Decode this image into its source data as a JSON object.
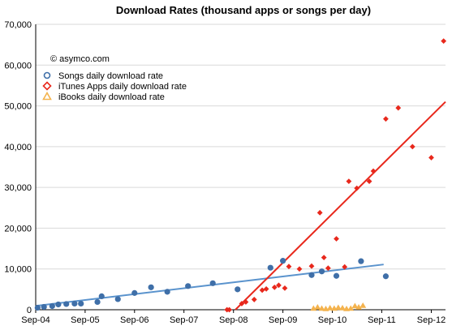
{
  "chart_data": {
    "type": "scatter",
    "title": "Download Rates (thousand apps or songs per day)",
    "annotation": "© asymco.com",
    "xlabel": "",
    "ylabel": "",
    "xlim": [
      "2004-09-01",
      "2012-12-15"
    ],
    "ylim": [
      0,
      70000
    ],
    "y_ticks": [
      0,
      10000,
      20000,
      30000,
      40000,
      50000,
      60000,
      70000
    ],
    "y_tick_labels": [
      "0",
      "10,000",
      "20,000",
      "30,000",
      "40,000",
      "50,000",
      "60,000",
      "70,000"
    ],
    "x_ticks": [
      "2004-09-01",
      "2005-09-01",
      "2006-09-01",
      "2007-09-01",
      "2008-09-01",
      "2009-09-01",
      "2010-09-01",
      "2011-09-01",
      "2012-09-01"
    ],
    "x_tick_labels": [
      "Sep-04",
      "Sep-05",
      "Sep-06",
      "Sep-07",
      "Sep-08",
      "Sep-09",
      "Sep-10",
      "Sep-11",
      "Sep-12"
    ],
    "grid": {
      "horizontal": true,
      "vertical": false
    },
    "legend_position": "top-left",
    "series": [
      {
        "name": "Songs daily download rate",
        "marker": "circle",
        "color": "#3f6fa8",
        "x": [
          "2004-09-15",
          "2004-11-01",
          "2005-01-01",
          "2005-02-15",
          "2005-04-15",
          "2005-06-15",
          "2005-08-01",
          "2005-12-01",
          "2006-01-01",
          "2006-05-01",
          "2006-09-01",
          "2007-01-01",
          "2007-05-01",
          "2007-10-01",
          "2008-04-01",
          "2008-10-01",
          "2009-06-01",
          "2009-09-01",
          "2010-04-01",
          "2010-06-15",
          "2010-10-01",
          "2011-04-01",
          "2011-10-01"
        ],
        "y": [
          500,
          700,
          900,
          1300,
          1400,
          1500,
          1500,
          1900,
          3300,
          2600,
          4100,
          5500,
          4400,
          5800,
          6500,
          5000,
          10300,
          12000,
          8500,
          9400,
          8300,
          11900,
          8200
        ]
      },
      {
        "name": "iTunes Apps daily download rate",
        "marker": "diamond",
        "color": "#e8281c",
        "x": [
          "2008-07-15",
          "2008-08-01",
          "2008-11-01",
          "2008-12-01",
          "2009-02-01",
          "2009-04-01",
          "2009-05-01",
          "2009-07-01",
          "2009-08-01",
          "2009-09-15",
          "2009-10-15",
          "2010-01-01",
          "2010-04-01",
          "2010-06-01",
          "2010-07-01",
          "2010-08-01",
          "2010-10-01",
          "2010-12-01",
          "2011-01-01",
          "2011-03-01",
          "2011-06-01",
          "2011-07-01",
          "2011-10-01",
          "2012-01-01",
          "2012-04-15",
          "2012-09-01",
          "2012-12-01"
        ],
        "y": [
          0,
          0,
          1500,
          1900,
          2500,
          4800,
          5100,
          5500,
          6000,
          5300,
          10600,
          10000,
          10700,
          23800,
          12800,
          10200,
          17400,
          10500,
          31500,
          29800,
          31500,
          34000,
          46800,
          49500,
          40000,
          37300,
          65900
        ]
      },
      {
        "name": "iBooks daily download rate",
        "marker": "triangle",
        "color": "#f4b34e",
        "x": [
          "2010-04-15",
          "2010-05-15",
          "2010-06-15",
          "2010-07-15",
          "2010-08-15",
          "2010-09-15",
          "2010-10-15",
          "2010-11-15",
          "2010-12-15",
          "2011-01-15",
          "2011-02-15",
          "2011-03-15",
          "2011-04-15"
        ],
        "y": [
          300,
          600,
          300,
          200,
          400,
          300,
          500,
          400,
          200,
          300,
          900,
          600,
          1000
        ]
      }
    ],
    "trendlines": [
      {
        "series": "Songs daily download rate",
        "color": "#5a93cd",
        "x": [
          "2004-09-15",
          "2011-09-15"
        ],
        "y": [
          1000,
          11100
        ]
      },
      {
        "series": "iTunes Apps daily download rate",
        "color": "#e8281c",
        "x": [
          "2008-09-15",
          "2012-12-15"
        ],
        "y": [
          0,
          51000
        ]
      }
    ]
  }
}
